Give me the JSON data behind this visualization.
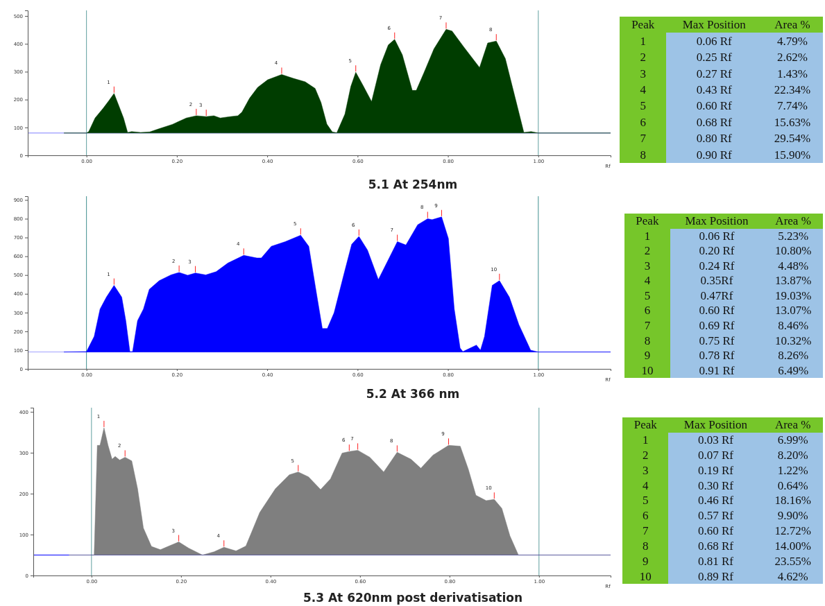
{
  "chart_data": [
    {
      "type": "area",
      "title": "5.1 At 254nm",
      "xlabel": "Rf",
      "xlim": [
        -0.13,
        1.16
      ],
      "ylim": [
        0,
        520
      ],
      "xticks": [
        {
          "value": 0,
          "label": "0.00"
        },
        {
          "value": 0.2,
          "label": "0.20"
        },
        {
          "value": 0.4,
          "label": "0.40"
        },
        {
          "value": 0.6,
          "label": "0.60"
        },
        {
          "value": 0.8,
          "label": "0.80"
        },
        {
          "value": 1,
          "label": "1.00"
        }
      ],
      "yticks": [
        0,
        100,
        200,
        300,
        400,
        500
      ],
      "ref_lines": [
        {
          "axis": "x",
          "value": 0,
          "color": "#5f9f9f"
        },
        {
          "axis": "x",
          "value": 1,
          "color": "#5f9f9f"
        },
        {
          "axis": "y",
          "value": 80,
          "color": "#7f7fff"
        }
      ],
      "x": [
        -0.05,
        0,
        0.005,
        0.019,
        0.037,
        0.05,
        0.061,
        0.072,
        0.082,
        0.091,
        0.1,
        0.12,
        0.14,
        0.16,
        0.19,
        0.221,
        0.243,
        0.265,
        0.282,
        0.296,
        0.318,
        0.335,
        0.344,
        0.361,
        0.379,
        0.401,
        0.432,
        0.458,
        0.484,
        0.506,
        0.519,
        0.532,
        0.544,
        0.554,
        0.572,
        0.585,
        0.596,
        0.611,
        0.631,
        0.651,
        0.668,
        0.682,
        0.699,
        0.721,
        0.73,
        0.747,
        0.769,
        0.796,
        0.809,
        0.835,
        0.87,
        0.888,
        0.907,
        0.927,
        0.949,
        0.968,
        0.984,
        1,
        1.16
      ],
      "series": [
        {
          "color": "#003d00",
          "values": [
            80,
            80,
            85,
            134,
            169,
            197,
            222,
            176,
            134,
            82,
            85,
            82,
            84,
            95,
            111,
            134,
            142,
            139,
            142,
            134,
            139,
            142,
            155,
            205,
            244,
            271,
            290,
            276,
            264,
            240,
            190,
            112,
            84,
            81,
            148,
            247,
            298,
            254,
            193,
            325,
            396,
            416,
            361,
            233,
            233,
            297,
            382,
            452,
            446,
            389,
            315,
            403,
            410,
            347,
            205,
            82,
            85,
            80,
            80
          ]
        }
      ],
      "annotations": [
        {
          "text": "1",
          "x": 0.061,
          "y": 222
        },
        {
          "text": "2",
          "x": 0.243,
          "y": 142
        },
        {
          "text": "3",
          "x": 0.265,
          "y": 139
        },
        {
          "text": "4",
          "x": 0.432,
          "y": 290
        },
        {
          "text": "5",
          "x": 0.596,
          "y": 298
        },
        {
          "text": "6",
          "x": 0.682,
          "y": 416
        },
        {
          "text": "7",
          "x": 0.796,
          "y": 452
        },
        {
          "text": "8",
          "x": 0.907,
          "y": 410
        },
        "Peak",
        "Max Position",
        "Area %",
        "1",
        "0.06 Rf",
        "4.79%",
        "2",
        "0.25 Rf",
        "2.62%",
        "3",
        "0.27 Rf",
        "1.43%",
        "4",
        "0.43 Rf",
        "22.34%",
        "5",
        "0.60 Rf",
        "7.74%",
        "6",
        "0.68 Rf",
        "15.63%",
        "7",
        "0.80 Rf",
        "29.54%",
        "8",
        "0.90 Rf",
        "15.90%"
      ]
    },
    {
      "type": "area",
      "title": "5.2 At 366 nm",
      "xlabel": "Rf",
      "xlim": [
        -0.13,
        1.16
      ],
      "ylim": [
        0,
        920
      ],
      "xticks": [
        {
          "value": 0,
          "label": "0.00"
        },
        {
          "value": 0.2,
          "label": "0.20"
        },
        {
          "value": 0.4,
          "label": "0.40"
        },
        {
          "value": 0.6,
          "label": "0.60"
        },
        {
          "value": 0.8,
          "label": "0.80"
        },
        {
          "value": 1,
          "label": "1.00"
        }
      ],
      "yticks": [
        0,
        100,
        200,
        300,
        400,
        500,
        600,
        700,
        800,
        900
      ],
      "ref_lines": [
        {
          "axis": "x",
          "value": 0,
          "color": "#3f8f8f"
        },
        {
          "axis": "x",
          "value": 1,
          "color": "#3f8f8f"
        },
        {
          "axis": "y",
          "value": 90,
          "color": "#9f9fff"
        }
      ],
      "x": [
        -0.05,
        0,
        0.017,
        0.03,
        0.044,
        0.061,
        0.078,
        0.087,
        0.096,
        0.102,
        0.113,
        0.126,
        0.139,
        0.161,
        0.187,
        0.205,
        0.224,
        0.241,
        0.264,
        0.287,
        0.313,
        0.348,
        0.377,
        0.387,
        0.409,
        0.44,
        0.474,
        0.492,
        0.509,
        0.522,
        0.533,
        0.548,
        0.57,
        0.587,
        0.603,
        0.622,
        0.646,
        0.67,
        0.688,
        0.707,
        0.733,
        0.755,
        0.765,
        0.786,
        0.801,
        0.814,
        0.827,
        0.833,
        0.863,
        0.872,
        0.881,
        0.898,
        0.914,
        0.936,
        0.957,
        0.983,
        1,
        1.16
      ],
      "series": [
        {
          "color": "#0000ff",
          "values": [
            90,
            92,
            173,
            319,
            382,
            445,
            382,
            257,
            92,
            92,
            257,
            319,
            424,
            470,
            501,
            514,
            499,
            511,
            501,
            518,
            564,
            605,
            591,
            591,
            653,
            678,
            712,
            653,
            403,
            215,
            215,
            299,
            507,
            664,
            706,
            633,
            476,
            591,
            678,
            660,
            768,
            800,
            795,
            810,
            695,
            319,
            111,
            92,
            127,
            100,
            173,
            445,
            470,
            382,
            236,
            100,
            90,
            90
          ]
        }
      ],
      "annotations": [
        {
          "text": "1",
          "x": 0.061,
          "y": 445
        },
        {
          "text": "2",
          "x": 0.205,
          "y": 514
        },
        {
          "text": "3",
          "x": 0.241,
          "y": 511
        },
        {
          "text": "4",
          "x": 0.348,
          "y": 605
        },
        {
          "text": "5",
          "x": 0.474,
          "y": 712
        },
        {
          "text": "6",
          "x": 0.603,
          "y": 706
        },
        {
          "text": "7",
          "x": 0.688,
          "y": 678
        },
        {
          "text": "8",
          "x": 0.755,
          "y": 800
        },
        {
          "text": "9",
          "x": 0.786,
          "y": 810
        },
        {
          "text": "10",
          "x": 0.914,
          "y": 470
        },
        "Peak",
        "Max Position",
        "Area %",
        "1",
        "0.06 Rf",
        "5.23%",
        "2",
        "0.20 Rf",
        "10.80%",
        "3",
        "0.24 Rf",
        "4.48%",
        "4",
        "0.35Rf",
        "13.87%",
        "5",
        "0.47Rf",
        "19.03%",
        "6",
        "0.60 Rf",
        "13.07%",
        "7",
        "0.69 Rf",
        "8.46%",
        "8",
        "0.75 Rf",
        "10.32%",
        "9",
        "0.78 Rf",
        "8.26%",
        "10",
        "0.91 Rf",
        "6.49%"
      ]
    },
    {
      "type": "area",
      "title": "5.3 At 620nm post derivatisation",
      "xlabel": "Rf",
      "xlim": [
        -0.13,
        1.16
      ],
      "ylim": [
        0,
        410
      ],
      "xticks": [
        {
          "value": 0,
          "label": "0.00"
        },
        {
          "value": 0.2,
          "label": "0.20"
        },
        {
          "value": 0.4,
          "label": "0.40"
        },
        {
          "value": 0.6,
          "label": "0.60"
        },
        {
          "value": 0.8,
          "label": "0.80"
        },
        {
          "value": 1,
          "label": "1.00"
        }
      ],
      "yticks": [
        0,
        100,
        200,
        300,
        400
      ],
      "ref_lines": [
        {
          "axis": "x",
          "value": 0,
          "color": "#5f9f9f"
        },
        {
          "axis": "x",
          "value": 1,
          "color": "#5f9f9f"
        },
        {
          "axis": "y",
          "value": 50,
          "color": "#0000ff"
        }
      ],
      "x": [
        -0.05,
        0,
        0.006,
        0.013,
        0.019,
        0.028,
        0.037,
        0.046,
        0.053,
        0.063,
        0.075,
        0.09,
        0.103,
        0.116,
        0.134,
        0.154,
        0.173,
        0.195,
        0.217,
        0.248,
        0.274,
        0.296,
        0.323,
        0.345,
        0.376,
        0.411,
        0.442,
        0.462,
        0.485,
        0.512,
        0.534,
        0.56,
        0.576,
        0.595,
        0.622,
        0.653,
        0.683,
        0.714,
        0.736,
        0.763,
        0.798,
        0.824,
        0.842,
        0.859,
        0.882,
        0.9,
        0.917,
        0.935,
        0.954,
        1,
        1.16
      ],
      "series": [
        {
          "color": "#7f7f7f",
          "values": [
            50,
            50,
            50,
            318,
            318,
            361,
            318,
            284,
            291,
            282,
            289,
            280,
            212,
            116,
            71,
            63,
            72,
            82,
            67,
            50,
            58,
            69,
            60,
            72,
            154,
            212,
            246,
            253,
            241,
            210,
            236,
            299,
            303,
            306,
            289,
            253,
            301,
            284,
            262,
            294,
            318,
            316,
            260,
            196,
            183,
            186,
            164,
            97,
            50,
            50,
            50
          ]
        }
      ],
      "annotations": [
        {
          "text": "1",
          "x": 0.028,
          "y": 361
        },
        {
          "text": "2",
          "x": 0.075,
          "y": 289
        },
        {
          "text": "3",
          "x": 0.195,
          "y": 82
        },
        {
          "text": "4",
          "x": 0.296,
          "y": 69
        },
        {
          "text": "5",
          "x": 0.462,
          "y": 253
        },
        {
          "text": "6",
          "x": 0.576,
          "y": 303
        },
        {
          "text": "7",
          "x": 0.595,
          "y": 306
        },
        {
          "text": "8",
          "x": 0.683,
          "y": 301
        },
        {
          "text": "9",
          "x": 0.798,
          "y": 318
        },
        {
          "text": "10",
          "x": 0.9,
          "y": 186
        },
        "Peak",
        "Max Position",
        "Area %",
        "1",
        "0.03 Rf",
        "6.99%",
        "2",
        "0.07 Rf",
        "8.20%",
        "3",
        "0.19 Rf",
        "1.22%",
        "4",
        "0.30 Rf",
        "0.64%",
        "5",
        "0.46 Rf",
        "18.16%",
        "6",
        "0.57 Rf",
        "9.90%",
        "7",
        "0.60 Rf",
        "12.72%",
        "8",
        "0.68 Rf",
        "14.00%",
        "9",
        "0.81 Rf",
        "23.55%",
        "10",
        "0.89 Rf",
        "4.62%"
      ]
    }
  ]
}
